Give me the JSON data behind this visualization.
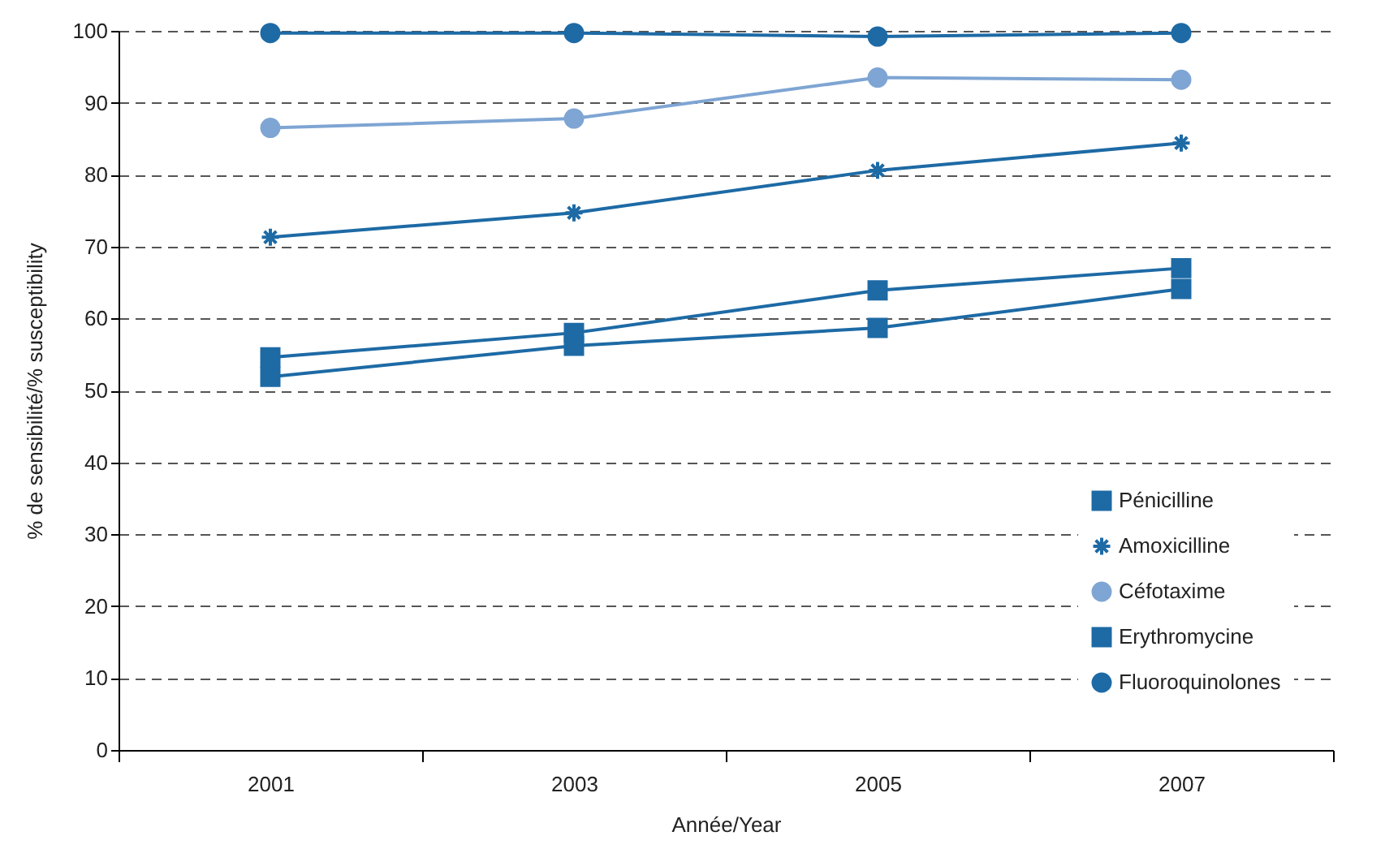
{
  "chart_data": {
    "type": "line",
    "xlabel": "Année/Year",
    "ylabel": "% de sensibilité/% susceptibility",
    "categories": [
      "2001",
      "2003",
      "2005",
      "2007"
    ],
    "ylim": [
      0,
      100
    ],
    "yticks": [
      0,
      10,
      20,
      30,
      40,
      50,
      60,
      70,
      80,
      90,
      100
    ],
    "grid": "y",
    "legend": "bottom right",
    "line_style": "solid",
    "series": [
      {
        "name": "Pénicilline",
        "color": "#1d6aa5",
        "marker": "square",
        "values": [
          54.6,
          58.0,
          63.9,
          67.0
        ]
      },
      {
        "name": "Amoxicilline",
        "color": "#1d6aa5",
        "marker": "cross",
        "values": [
          71.3,
          74.7,
          80.6,
          84.4
        ]
      },
      {
        "name": "Céfotaxime",
        "color": "#7ea5d3",
        "marker": "circle",
        "values": [
          86.5,
          87.8,
          93.5,
          93.2
        ]
      },
      {
        "name": "Erythromycine",
        "color": "#1d6aa5",
        "marker": "square",
        "values": [
          51.9,
          56.2,
          58.7,
          64.1
        ]
      },
      {
        "name": "Fluoroquinolones",
        "color": "#1d6aa5",
        "marker": "circle",
        "values": [
          99.7,
          99.7,
          99.2,
          99.7
        ]
      }
    ]
  }
}
